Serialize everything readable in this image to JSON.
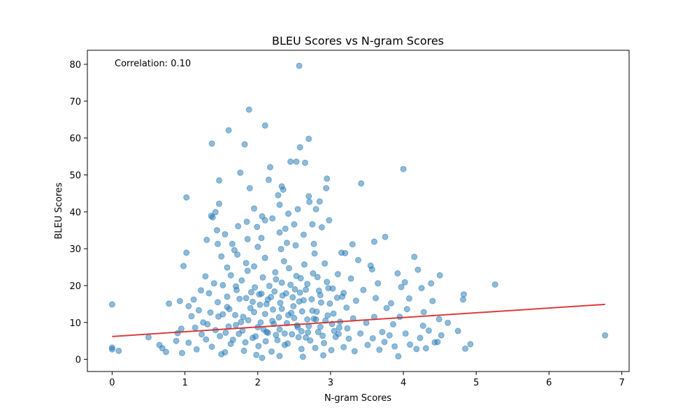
{
  "chart_data": {
    "type": "scatter",
    "title": "BLEU Scores vs N-gram Scores",
    "xlabel": "N-gram Scores",
    "ylabel": "BLEU Scores",
    "annotation": "Correlation: 0.10",
    "xlim": [
      -0.34,
      7.1
    ],
    "ylim": [
      -3.3,
      83.8
    ],
    "xticks": [
      "0",
      "1",
      "2",
      "3",
      "4",
      "5",
      "6",
      "7"
    ],
    "yticks": [
      "0",
      "10",
      "20",
      "30",
      "40",
      "50",
      "60",
      "70",
      "80"
    ],
    "grid": false,
    "point_color": "#1f77b4",
    "point_alpha": 0.5,
    "trend_color": "#d62728",
    "series": [
      {
        "points": [
          [
            2.57,
            79.6
          ],
          [
            1.88,
            67.7
          ],
          [
            2.1,
            63.4
          ],
          [
            1.6,
            62.1
          ],
          [
            2.7,
            59.8
          ],
          [
            1.37,
            58.5
          ],
          [
            1.82,
            58.3
          ],
          [
            2.58,
            57.5
          ],
          [
            2.45,
            53.6
          ],
          [
            2.53,
            53.6
          ],
          [
            2.65,
            53.3
          ],
          [
            1.76,
            50.6
          ],
          [
            2.17,
            52.1
          ],
          [
            4.0,
            51.6
          ],
          [
            1.47,
            48.5
          ],
          [
            2.15,
            48.7
          ],
          [
            2.95,
            49.0
          ],
          [
            3.42,
            47.7
          ],
          [
            1.89,
            46.4
          ],
          [
            2.33,
            46.9
          ],
          [
            2.35,
            46.0
          ],
          [
            2.94,
            46.4
          ],
          [
            2.28,
            44.5
          ],
          [
            2.7,
            44.2
          ],
          [
            1.02,
            43.9
          ],
          [
            1.47,
            42.2
          ],
          [
            2.71,
            42.7
          ],
          [
            2.85,
            42.8
          ],
          [
            2.3,
            41.9
          ],
          [
            1.95,
            40.9
          ],
          [
            2.55,
            40.7
          ],
          [
            2.8,
            40.7
          ],
          [
            1.42,
            39.9
          ],
          [
            2.42,
            39.5
          ],
          [
            1.36,
            38.9
          ],
          [
            1.38,
            38.5
          ],
          [
            2.06,
            38.8
          ],
          [
            2.2,
            38.2
          ],
          [
            1.85,
            37.3
          ],
          [
            2.1,
            37.7
          ],
          [
            2.98,
            37.7
          ],
          [
            1.73,
            36.1
          ],
          [
            2.5,
            36.6
          ],
          [
            2.75,
            36.6
          ],
          [
            1.99,
            35.9
          ],
          [
            2.38,
            35.4
          ],
          [
            2.88,
            35.8
          ],
          [
            3.75,
            33.2
          ],
          [
            1.44,
            35.0
          ],
          [
            2.3,
            34.4
          ],
          [
            1.55,
            33.9
          ],
          [
            2.63,
            33.8
          ],
          [
            1.3,
            32.4
          ],
          [
            1.86,
            32.6
          ],
          [
            2.05,
            32.9
          ],
          [
            3.3,
            31.2
          ],
          [
            3.6,
            31.9
          ],
          [
            1.45,
            31.3
          ],
          [
            1.65,
            31.3
          ],
          [
            2.4,
            31.6
          ],
          [
            2.77,
            31.3
          ],
          [
            2.0,
            30.5
          ],
          [
            2.52,
            30.9
          ],
          [
            1.02,
            28.9
          ],
          [
            1.68,
            29.6
          ],
          [
            2.32,
            29.9
          ],
          [
            3.15,
            28.9
          ],
          [
            3.2,
            28.8
          ],
          [
            4.15,
            27.8
          ],
          [
            0.98,
            25.3
          ],
          [
            1.5,
            27.9
          ],
          [
            1.72,
            28.4
          ],
          [
            2.1,
            27.5
          ],
          [
            2.78,
            28.7
          ],
          [
            3.55,
            25.4
          ],
          [
            3.57,
            24.4
          ],
          [
            4.2,
            24.3
          ],
          [
            1.84,
            26.1
          ],
          [
            2.36,
            26.6
          ],
          [
            2.64,
            25.7
          ],
          [
            2.92,
            26.0
          ],
          [
            3.38,
            26.9
          ],
          [
            1.28,
            22.5
          ],
          [
            1.58,
            24.9
          ],
          [
            1.95,
            25.2
          ],
          [
            2.53,
            22.6
          ],
          [
            3.1,
            23.1
          ],
          [
            3.92,
            23.3
          ],
          [
            4.5,
            22.8
          ],
          [
            1.4,
            20.6
          ],
          [
            2.25,
            21.7
          ],
          [
            2.82,
            22.3
          ],
          [
            3.28,
            21.9
          ],
          [
            3.65,
            20.6
          ],
          [
            4.02,
            20.9
          ],
          [
            4.38,
            20.6
          ],
          [
            1.22,
            18.7
          ],
          [
            1.7,
            19.8
          ],
          [
            2.45,
            20.2
          ],
          [
            2.97,
            19.3
          ],
          [
            3.45,
            18.8
          ],
          [
            3.97,
            19.6
          ],
          [
            4.25,
            19.3
          ],
          [
            5.26,
            20.3
          ],
          [
            1.12,
            16.2
          ],
          [
            1.33,
            17.9
          ],
          [
            2.05,
            17.8
          ],
          [
            2.58,
            18.1
          ],
          [
            3.16,
            17.0
          ],
          [
            3.62,
            16.6
          ],
          [
            4.08,
            16.5
          ],
          [
            4.83,
            17.6
          ],
          [
            0.0,
            14.9
          ],
          [
            0.78,
            15.1
          ],
          [
            0.93,
            15.8
          ],
          [
            1.05,
            14.4
          ],
          [
            1.45,
            15.5
          ],
          [
            2.12,
            15.0
          ],
          [
            2.87,
            15.4
          ],
          [
            3.35,
            15.9
          ],
          [
            3.83,
            15.2
          ],
          [
            4.4,
            15.8
          ],
          [
            4.82,
            16.2
          ],
          [
            1.19,
            13.3
          ],
          [
            1.61,
            13.6
          ],
          [
            2.33,
            13.7
          ],
          [
            2.75,
            13.2
          ],
          [
            3.22,
            14.0
          ],
          [
            3.77,
            13.9
          ],
          [
            4.05,
            13.6
          ],
          [
            4.28,
            12.8
          ],
          [
            1.09,
            11.7
          ],
          [
            1.52,
            12.2
          ],
          [
            2.42,
            12.0
          ],
          [
            3.04,
            12.4
          ],
          [
            3.6,
            11.5
          ],
          [
            3.95,
            11.5
          ],
          [
            4.49,
            10.9
          ],
          [
            4.61,
            9.9
          ],
          [
            0.95,
            8.3
          ],
          [
            1.25,
            10.0
          ],
          [
            1.77,
            10.1
          ],
          [
            2.22,
            9.6
          ],
          [
            2.68,
            10.8
          ],
          [
            3.49,
            9.9
          ],
          [
            3.86,
            9.5
          ],
          [
            4.27,
            9.1
          ],
          [
            4.35,
            7.8
          ],
          [
            4.75,
            7.7
          ],
          [
            0.5,
            6.0
          ],
          [
            0.9,
            7.1
          ],
          [
            1.14,
            8.6
          ],
          [
            1.6,
            8.9
          ],
          [
            2.08,
            8.1
          ],
          [
            2.55,
            8.7
          ],
          [
            3.12,
            8.6
          ],
          [
            3.71,
            7.4
          ],
          [
            4.03,
            7.0
          ],
          [
            4.52,
            6.5
          ],
          [
            0.0,
            3.2
          ],
          [
            0.0,
            2.7
          ],
          [
            0.09,
            2.3
          ],
          [
            0.65,
            3.9
          ],
          [
            0.69,
            3.0
          ],
          [
            0.74,
            2.0
          ],
          [
            0.88,
            5.0
          ],
          [
            0.96,
            1.7
          ],
          [
            1.05,
            4.5
          ],
          [
            1.16,
            2.7
          ],
          [
            1.29,
            5.4
          ],
          [
            1.37,
            3.4
          ],
          [
            1.48,
            6.3
          ],
          [
            1.55,
            1.9
          ],
          [
            1.63,
            4.2
          ],
          [
            1.74,
            6.9
          ],
          [
            1.81,
            2.3
          ],
          [
            1.93,
            5.8
          ],
          [
            2.01,
            3.6
          ],
          [
            2.14,
            7.2
          ],
          [
            2.19,
            2.1
          ],
          [
            2.27,
            5.2
          ],
          [
            2.37,
            3.9
          ],
          [
            2.47,
            6.8
          ],
          [
            2.6,
            2.8
          ],
          [
            2.66,
            5.9
          ],
          [
            2.79,
            3.1
          ],
          [
            2.83,
            7.4
          ],
          [
            2.91,
            4.4
          ],
          [
            3.01,
            2.5
          ],
          [
            3.07,
            6.1
          ],
          [
            3.18,
            3.3
          ],
          [
            3.25,
            5.6
          ],
          [
            3.33,
            2.2
          ],
          [
            3.41,
            7.0
          ],
          [
            3.51,
            3.9
          ],
          [
            3.58,
            5.7
          ],
          [
            3.67,
            2.6
          ],
          [
            3.74,
            4.7
          ],
          [
            3.81,
            6.5
          ],
          [
            3.88,
            3.5
          ],
          [
            3.93,
            0.8
          ],
          [
            4.09,
            4.0
          ],
          [
            4.18,
            2.8
          ],
          [
            4.23,
            5.8
          ],
          [
            4.31,
            3.0
          ],
          [
            4.43,
            4.6
          ],
          [
            4.47,
            4.7
          ],
          [
            4.85,
            2.9
          ],
          [
            4.92,
            4.1
          ],
          [
            6.77,
            6.5
          ],
          [
            1.5,
            1.4
          ],
          [
            1.98,
            1.2
          ],
          [
            2.3,
            0.9
          ],
          [
            2.62,
            0.7
          ],
          [
            2.06,
            0.4
          ],
          [
            2.9,
            1.1
          ],
          [
            1.7,
            9.3
          ],
          [
            1.8,
            11.5
          ],
          [
            1.9,
            13.9
          ],
          [
            2.0,
            8.7
          ],
          [
            2.1,
            12.3
          ],
          [
            2.2,
            10.4
          ],
          [
            2.3,
            8.1
          ],
          [
            2.4,
            9.8
          ],
          [
            2.5,
            11.2
          ],
          [
            2.6,
            7.6
          ],
          [
            2.7,
            9.0
          ],
          [
            2.8,
            10.8
          ],
          [
            1.35,
            12.7
          ],
          [
            1.42,
            7.9
          ],
          [
            1.58,
            14.2
          ],
          [
            1.66,
            5.3
          ],
          [
            1.75,
            16.4
          ],
          [
            1.83,
            4.6
          ],
          [
            1.91,
            18.2
          ],
          [
            1.97,
            6.2
          ],
          [
            2.03,
            14.8
          ],
          [
            2.11,
            4.9
          ],
          [
            2.18,
            16.9
          ],
          [
            2.25,
            6.6
          ],
          [
            2.34,
            17.3
          ],
          [
            2.41,
            4.3
          ],
          [
            2.49,
            14.4
          ],
          [
            2.56,
            6.0
          ],
          [
            2.63,
            16.0
          ],
          [
            2.72,
            5.1
          ],
          [
            2.81,
            12.9
          ],
          [
            2.89,
            6.4
          ],
          [
            2.96,
            11.9
          ],
          [
            3.05,
            7.7
          ],
          [
            3.13,
            10.2
          ],
          [
            3.23,
            8.4
          ],
          [
            3.31,
            11.1
          ],
          [
            1.23,
            6.8
          ],
          [
            1.31,
            9.5
          ],
          [
            1.46,
            11.6
          ],
          [
            1.56,
            7.2
          ],
          [
            1.69,
            12.0
          ],
          [
            1.79,
            7.8
          ],
          [
            1.87,
            10.6
          ],
          [
            1.95,
            12.8
          ],
          [
            2.04,
            10.0
          ],
          [
            2.12,
            7.4
          ],
          [
            2.21,
            13.5
          ],
          [
            2.29,
            11.4
          ],
          [
            2.37,
            7.0
          ],
          [
            2.46,
            12.6
          ],
          [
            2.54,
            9.2
          ],
          [
            2.61,
            13.0
          ],
          [
            2.69,
            7.3
          ],
          [
            2.77,
            11.0
          ],
          [
            2.86,
            8.8
          ],
          [
            2.93,
            10.5
          ],
          [
            3.02,
            9.6
          ],
          [
            3.11,
            6.9
          ],
          [
            1.52,
            20.1
          ],
          [
            1.63,
            22.8
          ],
          [
            1.78,
            21.4
          ],
          [
            1.86,
            24.0
          ],
          [
            1.96,
            19.5
          ],
          [
            2.07,
            22.2
          ],
          [
            2.16,
            19.9
          ],
          [
            2.24,
            23.6
          ],
          [
            2.33,
            20.8
          ],
          [
            2.43,
            24.7
          ],
          [
            2.51,
            19.0
          ],
          [
            2.59,
            22.0
          ],
          [
            2.68,
            20.4
          ],
          [
            2.76,
            23.3
          ],
          [
            2.84,
            18.6
          ],
          [
            2.95,
            21.0
          ],
          [
            3.03,
            19.2
          ],
          [
            1.58,
            17.0
          ],
          [
            1.71,
            18.8
          ],
          [
            1.84,
            16.6
          ],
          [
            1.93,
            15.6
          ],
          [
            2.02,
            17.6
          ],
          [
            2.14,
            16.2
          ],
          [
            2.23,
            18.4
          ],
          [
            2.31,
            15.3
          ],
          [
            2.39,
            17.9
          ],
          [
            2.48,
            16.8
          ],
          [
            2.57,
            15.7
          ],
          [
            2.66,
            18.9
          ],
          [
            2.74,
            16.3
          ],
          [
            2.86,
            17.4
          ],
          [
            2.99,
            15.1
          ],
          [
            3.09,
            16.7
          ],
          [
            3.18,
            18.0
          ]
        ]
      }
    ],
    "trend_line": {
      "x": [
        0.0,
        6.77
      ],
      "y": [
        6.2,
        14.9
      ]
    }
  }
}
